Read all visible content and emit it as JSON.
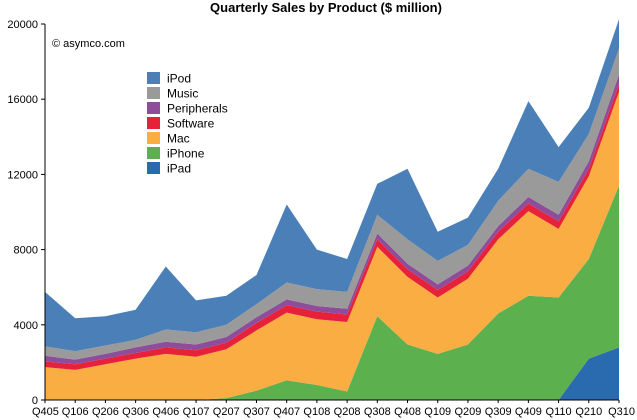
{
  "chart_data": {
    "type": "area",
    "stacked": true,
    "title": "Quarterly Sales by Product ($ million)",
    "watermark": "© asymco.com",
    "xlabel": "",
    "ylabel": "",
    "ylim": [
      0,
      20000
    ],
    "yticks": [
      0,
      4000,
      8000,
      12000,
      16000,
      20000
    ],
    "grid": false,
    "legend_position": "upper-left-inside",
    "categories": [
      "Q405",
      "Q106",
      "Q206",
      "Q306",
      "Q406",
      "Q107",
      "Q207",
      "Q307",
      "Q407",
      "Q108",
      "Q208",
      "Q308",
      "Q408",
      "Q109",
      "Q209",
      "Q309",
      "Q409",
      "Q110",
      "Q210",
      "Q310"
    ],
    "series": [
      {
        "name": "iPad",
        "color": "#2a6bb0",
        "values": [
          0,
          0,
          0,
          0,
          0,
          0,
          0,
          0,
          0,
          0,
          0,
          0,
          0,
          0,
          0,
          0,
          0,
          0,
          2200,
          2800
        ]
      },
      {
        "name": "iPhone",
        "color": "#5cb14e",
        "values": [
          0,
          0,
          0,
          0,
          0,
          0,
          100,
          500,
          1050,
          800,
          450,
          4450,
          2950,
          2450,
          2950,
          4600,
          5550,
          5450,
          5300,
          8600
        ]
      },
      {
        "name": "Mac",
        "color": "#f9ad43",
        "values": [
          1750,
          1600,
          1900,
          2200,
          2450,
          2300,
          2600,
          3200,
          3600,
          3500,
          3700,
          3700,
          3600,
          3000,
          3500,
          3950,
          4500,
          3650,
          4400,
          5000
        ]
      },
      {
        "name": "Software",
        "color": "#e8213a",
        "values": [
          300,
          300,
          300,
          300,
          350,
          350,
          350,
          400,
          400,
          400,
          400,
          400,
          400,
          400,
          400,
          400,
          400,
          400,
          400,
          400
        ]
      },
      {
        "name": "Peripherals",
        "color": "#8e4d9a",
        "values": [
          300,
          250,
          250,
          300,
          300,
          300,
          300,
          300,
          300,
          300,
          300,
          300,
          300,
          300,
          300,
          300,
          350,
          350,
          400,
          500
        ]
      },
      {
        "name": "Music",
        "color": "#9a9a9a",
        "values": [
          500,
          450,
          450,
          400,
          650,
          650,
          650,
          700,
          900,
          900,
          900,
          1000,
          1300,
          1250,
          1100,
          1350,
          1500,
          1750,
          1450,
          1400
        ]
      },
      {
        "name": "iPod",
        "color": "#4a7fb8",
        "values": [
          2900,
          1750,
          1550,
          1600,
          3350,
          1700,
          1550,
          1550,
          4150,
          2100,
          1750,
          1650,
          3750,
          1550,
          1450,
          1700,
          3600,
          1850,
          1400,
          1550
        ]
      }
    ]
  }
}
